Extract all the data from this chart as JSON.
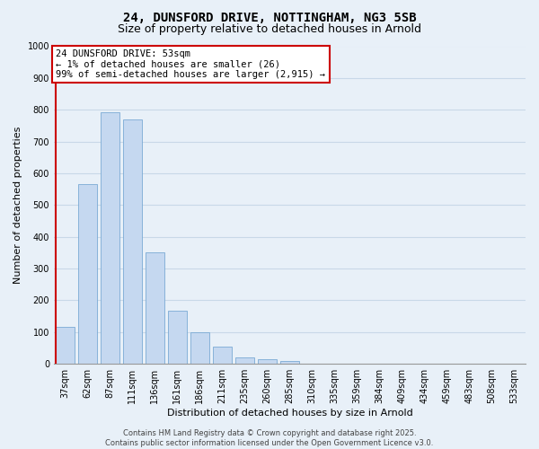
{
  "title1": "24, DUNSFORD DRIVE, NOTTINGHAM, NG3 5SB",
  "title2": "Size of property relative to detached houses in Arnold",
  "xlabel": "Distribution of detached houses by size in Arnold",
  "ylabel": "Number of detached properties",
  "bar_labels": [
    "37sqm",
    "62sqm",
    "87sqm",
    "111sqm",
    "136sqm",
    "161sqm",
    "186sqm",
    "211sqm",
    "235sqm",
    "260sqm",
    "285sqm",
    "310sqm",
    "335sqm",
    "359sqm",
    "384sqm",
    "409sqm",
    "434sqm",
    "459sqm",
    "483sqm",
    "508sqm",
    "533sqm"
  ],
  "bar_values": [
    117,
    565,
    793,
    770,
    350,
    168,
    100,
    55,
    20,
    15,
    8,
    0,
    0,
    0,
    0,
    0,
    0,
    0,
    0,
    0,
    0
  ],
  "bar_color": "#c5d8f0",
  "bar_edge_color": "#7aaad4",
  "marker_line_color": "#cc0000",
  "annotation_title": "24 DUNSFORD DRIVE: 53sqm",
  "annotation_line1": "← 1% of detached houses are smaller (26)",
  "annotation_line2": "99% of semi-detached houses are larger (2,915) →",
  "annotation_box_color": "#ffffff",
  "annotation_box_edge_color": "#cc0000",
  "ylim": [
    0,
    1000
  ],
  "yticks": [
    0,
    100,
    200,
    300,
    400,
    500,
    600,
    700,
    800,
    900,
    1000
  ],
  "footer1": "Contains HM Land Registry data © Crown copyright and database right 2025.",
  "footer2": "Contains public sector information licensed under the Open Government Licence v3.0.",
  "bg_color": "#e8f0f8",
  "grid_color": "#c8d8e8",
  "title_fontsize": 10,
  "subtitle_fontsize": 9,
  "axis_fontsize": 8,
  "tick_fontsize": 7,
  "footer_fontsize": 6
}
